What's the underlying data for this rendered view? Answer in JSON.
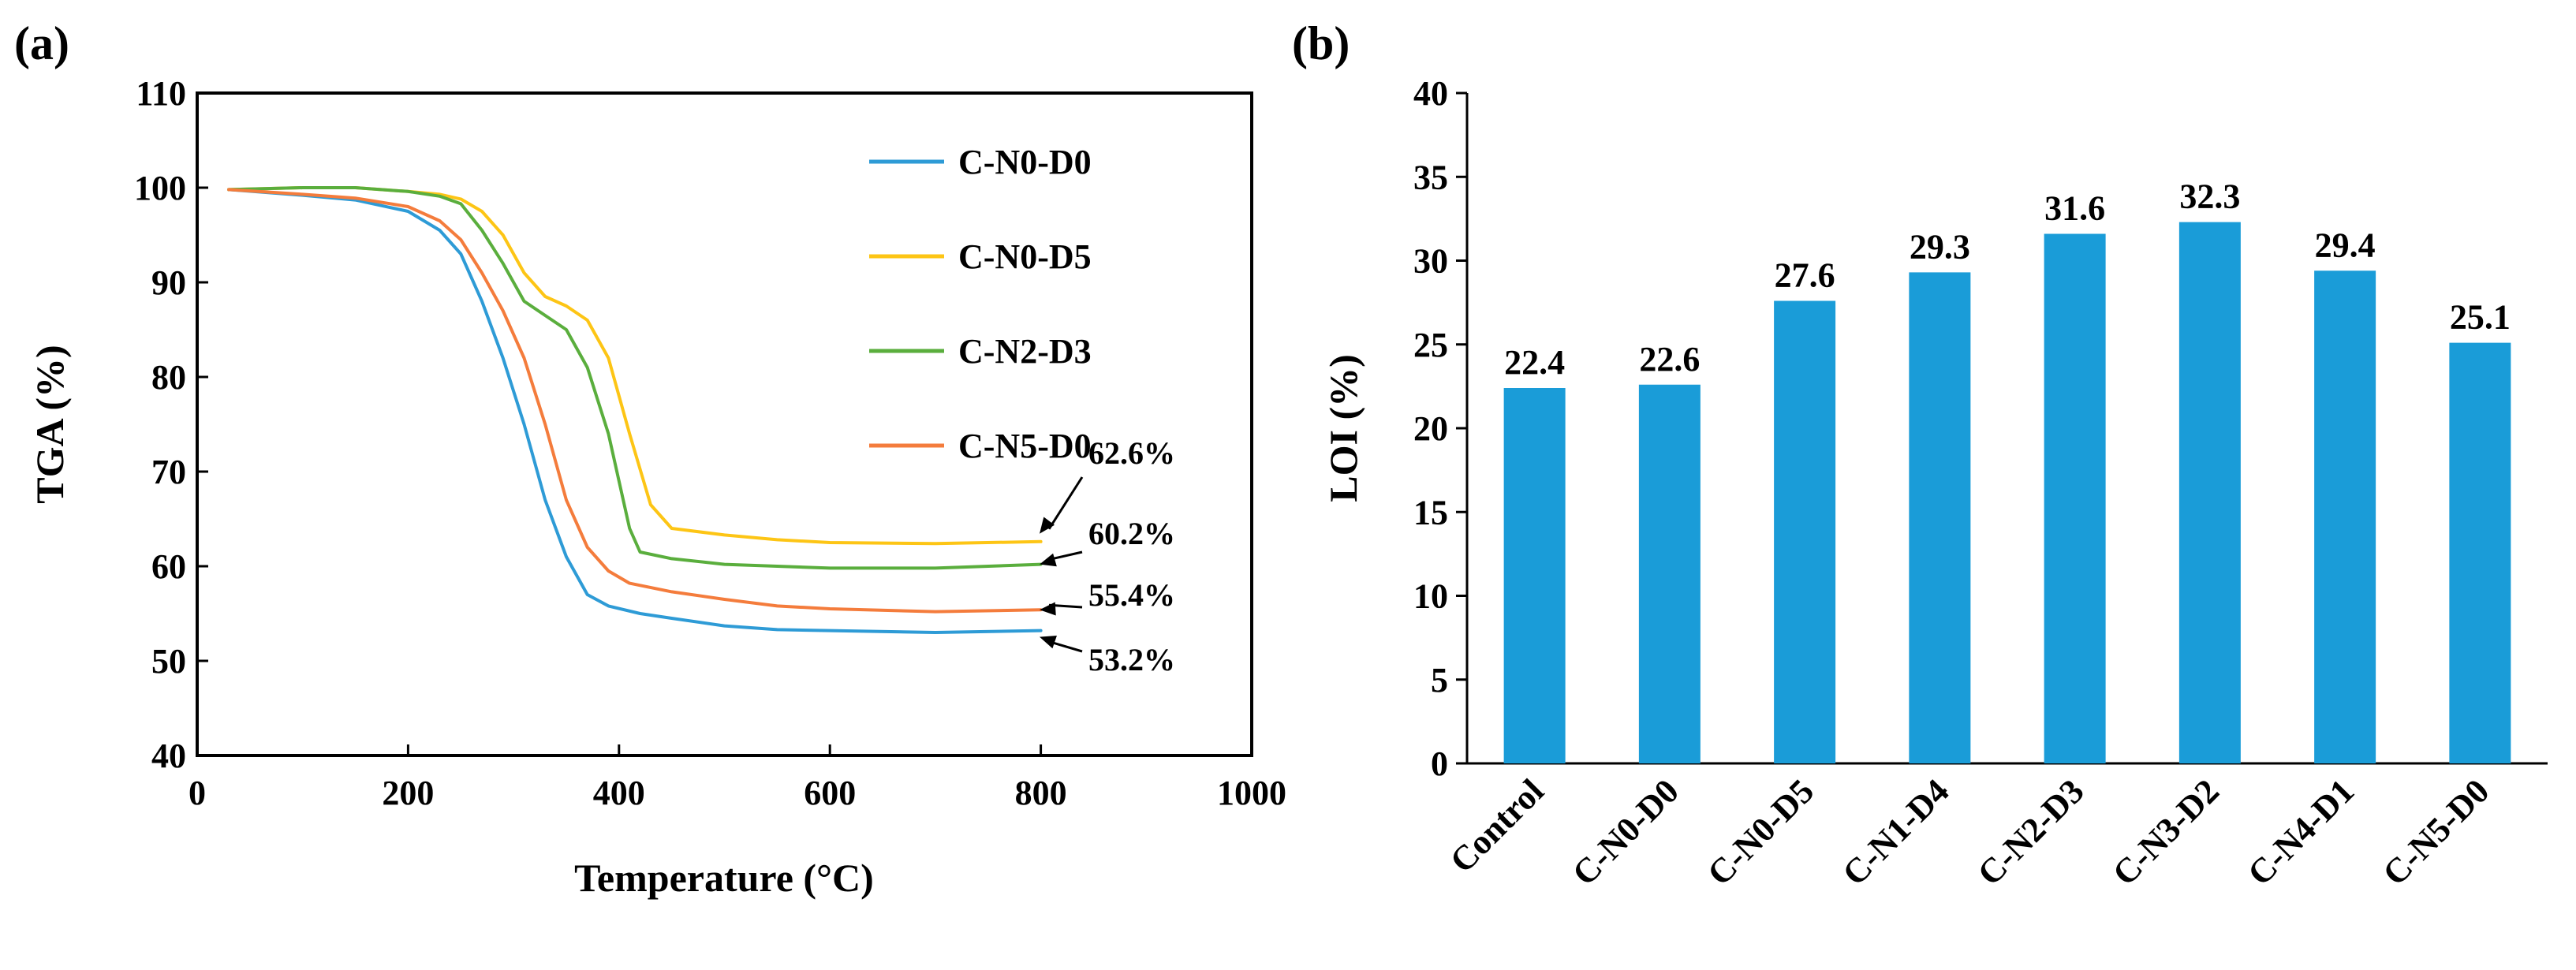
{
  "chart_data": [
    {
      "type": "line",
      "panel_label": "(a)",
      "xlabel": "Temperature (°C)",
      "ylabel": "TGA (%)",
      "xlim": [
        0,
        1000
      ],
      "ylim": [
        40,
        110
      ],
      "xticks": [
        0,
        200,
        400,
        600,
        800,
        1000
      ],
      "yticks": [
        40,
        50,
        60,
        70,
        80,
        90,
        100,
        110
      ],
      "grid": false,
      "legend_position": "top-right",
      "series": [
        {
          "name": "C-N0-D0",
          "color": "#2e9bd6",
          "x": [
            30,
            100,
            150,
            200,
            230,
            250,
            270,
            290,
            310,
            330,
            350,
            370,
            390,
            420,
            450,
            500,
            550,
            600,
            700,
            800
          ],
          "y": [
            99.8,
            99.2,
            98.7,
            97.5,
            95.5,
            93,
            88,
            82,
            75,
            67,
            61,
            57,
            55.8,
            55,
            54.5,
            53.7,
            53.3,
            53.2,
            53.0,
            53.2
          ]
        },
        {
          "name": "C-N0-D5",
          "color": "#fdc515",
          "x": [
            30,
            100,
            150,
            200,
            230,
            250,
            270,
            290,
            310,
            330,
            350,
            370,
            390,
            410,
            430,
            450,
            500,
            550,
            600,
            700,
            800
          ],
          "y": [
            99.8,
            100,
            100,
            99.6,
            99.3,
            98.8,
            97.5,
            95,
            91,
            88.5,
            87.5,
            86,
            82,
            74,
            66.5,
            64,
            63.3,
            62.8,
            62.5,
            62.4,
            62.6
          ]
        },
        {
          "name": "C-N2-D3",
          "color": "#5aae3d",
          "x": [
            30,
            100,
            150,
            200,
            230,
            250,
            270,
            290,
            310,
            330,
            350,
            370,
            390,
            410,
            420,
            450,
            500,
            600,
            700,
            800
          ],
          "y": [
            99.8,
            100,
            100,
            99.6,
            99.1,
            98.3,
            95.5,
            92,
            88,
            86.5,
            85,
            81,
            74,
            64,
            61.5,
            60.8,
            60.2,
            59.8,
            59.8,
            60.2
          ]
        },
        {
          "name": "C-N5-D0",
          "color": "#f47c3c",
          "x": [
            30,
            100,
            150,
            200,
            230,
            250,
            270,
            290,
            310,
            330,
            350,
            370,
            390,
            410,
            450,
            500,
            550,
            600,
            700,
            800
          ],
          "y": [
            99.8,
            99.3,
            98.9,
            98,
            96.5,
            94.5,
            91,
            87,
            82,
            75,
            67,
            62,
            59.5,
            58.2,
            57.3,
            56.5,
            55.8,
            55.5,
            55.2,
            55.4
          ]
        }
      ],
      "annotations": [
        "62.6%",
        "60.2%",
        "55.4%",
        "53.2%"
      ]
    },
    {
      "type": "bar",
      "panel_label": "(b)",
      "xlabel": "",
      "ylabel": "LOI (%)",
      "ylim": [
        0,
        40
      ],
      "yticks": [
        0,
        5,
        10,
        15,
        20,
        25,
        30,
        35,
        40
      ],
      "bar_color": "#1a9cd8",
      "categories": [
        "Control",
        "C-N0-D0",
        "C-N0-D5",
        "C-N1-D4",
        "C-N2-D3",
        "C-N3-D2",
        "C-N4-D1",
        "C-N5-D0"
      ],
      "values": [
        22.4,
        22.6,
        27.6,
        29.3,
        31.6,
        32.3,
        29.4,
        25.1
      ],
      "value_labels": [
        "22.4",
        "22.6",
        "27.6",
        "29.3",
        "31.6",
        "32.3",
        "29.4",
        "25.1"
      ]
    }
  ]
}
